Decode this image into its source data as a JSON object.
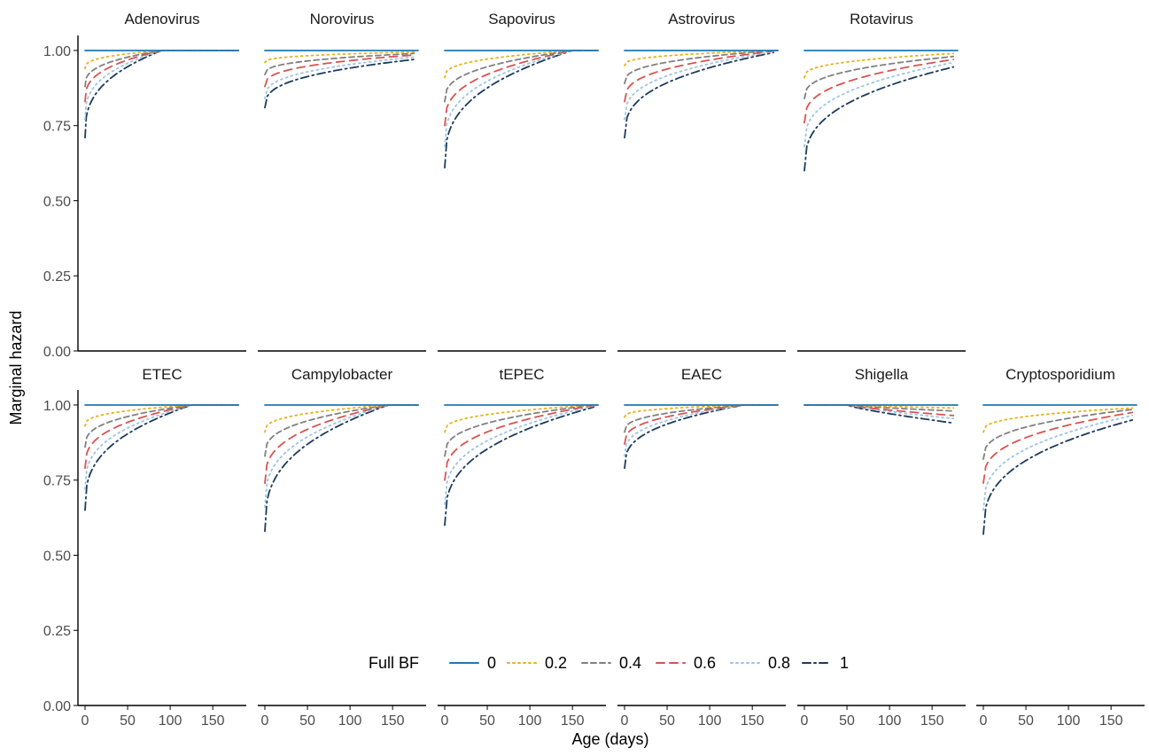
{
  "chart_data": {
    "type": "line",
    "xlabel": "Age (days)",
    "ylabel": "Marginal hazard",
    "xlim": [
      0,
      180
    ],
    "ylim": [
      0,
      1.05
    ],
    "x_ticks": [
      0,
      50,
      100,
      150
    ],
    "y_ticks": [
      0,
      0.25,
      0.5,
      0.75,
      1.0
    ],
    "y_tick_labels": [
      "0.00",
      "0.25",
      "0.50",
      "0.75",
      "1.00"
    ],
    "grid": false,
    "legend": {
      "title": "Full BF",
      "placement": "bottom",
      "entries": [
        {
          "label": "0",
          "color": "#1f77b4",
          "dash": "solid"
        },
        {
          "label": "0.2",
          "color": "#e8b21b",
          "dash": "dotted"
        },
        {
          "label": "0.4",
          "color": "#808080",
          "dash": "dashed"
        },
        {
          "label": "0.6",
          "color": "#d9534f",
          "dash": "longdash"
        },
        {
          "label": "0.8",
          "color": "#9ec3e6",
          "dash": "dotted"
        },
        {
          "label": "1",
          "color": "#1b3a5c",
          "dash": "dotdash"
        }
      ]
    },
    "panels": [
      {
        "title": "Adenovirus",
        "row": 0,
        "col": 0,
        "x_end": 180,
        "series": [
          {
            "name": "0",
            "start": 1.0,
            "end_x": 90,
            "end": 1.0
          },
          {
            "name": "0.2",
            "start": 0.94,
            "end_x": 90,
            "end": 1.0
          },
          {
            "name": "0.4",
            "start": 0.88,
            "end_x": 90,
            "end": 1.0
          },
          {
            "name": "0.6",
            "start": 0.83,
            "end_x": 90,
            "end": 1.0
          },
          {
            "name": "0.8",
            "start": 0.77,
            "end_x": 90,
            "end": 1.0
          },
          {
            "name": "1",
            "start": 0.71,
            "end_x": 90,
            "end": 1.0
          }
        ]
      },
      {
        "title": "Norovirus",
        "row": 0,
        "col": 1,
        "x_end": 180,
        "series": [
          {
            "name": "0",
            "start": 1.0,
            "end_x": 175,
            "end": 1.0
          },
          {
            "name": "0.2",
            "start": 0.96,
            "end_x": 175,
            "end": 0.995
          },
          {
            "name": "0.4",
            "start": 0.92,
            "end_x": 175,
            "end": 0.99
          },
          {
            "name": "0.6",
            "start": 0.88,
            "end_x": 175,
            "end": 0.985
          },
          {
            "name": "0.8",
            "start": 0.84,
            "end_x": 175,
            "end": 0.978
          },
          {
            "name": "1",
            "start": 0.81,
            "end_x": 175,
            "end": 0.97
          }
        ]
      },
      {
        "title": "Sapovirus",
        "row": 0,
        "col": 2,
        "x_end": 180,
        "series": [
          {
            "name": "0",
            "start": 1.0,
            "end_x": 150,
            "end": 1.0
          },
          {
            "name": "0.2",
            "start": 0.91,
            "end_x": 150,
            "end": 1.0
          },
          {
            "name": "0.4",
            "start": 0.83,
            "end_x": 150,
            "end": 1.0
          },
          {
            "name": "0.6",
            "start": 0.75,
            "end_x": 150,
            "end": 1.0
          },
          {
            "name": "0.8",
            "start": 0.68,
            "end_x": 150,
            "end": 1.0
          },
          {
            "name": "1",
            "start": 0.61,
            "end_x": 150,
            "end": 1.0
          }
        ]
      },
      {
        "title": "Astrovirus",
        "row": 0,
        "col": 3,
        "x_end": 180,
        "series": [
          {
            "name": "0",
            "start": 1.0,
            "end_x": 175,
            "end": 1.0
          },
          {
            "name": "0.2",
            "start": 0.95,
            "end_x": 175,
            "end": 1.0
          },
          {
            "name": "0.4",
            "start": 0.89,
            "end_x": 175,
            "end": 1.0
          },
          {
            "name": "0.6",
            "start": 0.83,
            "end_x": 175,
            "end": 0.998
          },
          {
            "name": "0.8",
            "start": 0.77,
            "end_x": 175,
            "end": 0.996
          },
          {
            "name": "1",
            "start": 0.71,
            "end_x": 175,
            "end": 0.993
          }
        ]
      },
      {
        "title": "Rotavirus",
        "row": 0,
        "col": 4,
        "x_end": 180,
        "series": [
          {
            "name": "0",
            "start": 1.0,
            "end_x": 175,
            "end": 1.0
          },
          {
            "name": "0.2",
            "start": 0.91,
            "end_x": 175,
            "end": 0.99
          },
          {
            "name": "0.4",
            "start": 0.84,
            "end_x": 175,
            "end": 0.98
          },
          {
            "name": "0.6",
            "start": 0.76,
            "end_x": 175,
            "end": 0.97
          },
          {
            "name": "0.8",
            "start": 0.68,
            "end_x": 175,
            "end": 0.96
          },
          {
            "name": "1",
            "start": 0.6,
            "end_x": 175,
            "end": 0.945
          }
        ]
      },
      {
        "title": "ETEC",
        "row": 1,
        "col": 0,
        "x_end": 180,
        "series": [
          {
            "name": "0",
            "start": 1.0,
            "end_x": 125,
            "end": 1.0
          },
          {
            "name": "0.2",
            "start": 0.93,
            "end_x": 125,
            "end": 1.0
          },
          {
            "name": "0.4",
            "start": 0.86,
            "end_x": 125,
            "end": 1.0
          },
          {
            "name": "0.6",
            "start": 0.79,
            "end_x": 125,
            "end": 1.0
          },
          {
            "name": "0.8",
            "start": 0.72,
            "end_x": 125,
            "end": 1.0
          },
          {
            "name": "1",
            "start": 0.65,
            "end_x": 125,
            "end": 1.0
          }
        ]
      },
      {
        "title": "Campylobacter",
        "row": 1,
        "col": 1,
        "x_end": 180,
        "series": [
          {
            "name": "0",
            "start": 1.0,
            "end_x": 145,
            "end": 1.0
          },
          {
            "name": "0.2",
            "start": 0.91,
            "end_x": 145,
            "end": 1.0
          },
          {
            "name": "0.4",
            "start": 0.83,
            "end_x": 145,
            "end": 1.0
          },
          {
            "name": "0.6",
            "start": 0.74,
            "end_x": 145,
            "end": 1.0
          },
          {
            "name": "0.8",
            "start": 0.66,
            "end_x": 145,
            "end": 1.0
          },
          {
            "name": "1",
            "start": 0.58,
            "end_x": 145,
            "end": 1.0
          }
        ]
      },
      {
        "title": "tEPEC",
        "row": 1,
        "col": 2,
        "x_end": 180,
        "series": [
          {
            "name": "0",
            "start": 1.0,
            "end_x": 175,
            "end": 1.0
          },
          {
            "name": "0.2",
            "start": 0.91,
            "end_x": 175,
            "end": 1.0
          },
          {
            "name": "0.4",
            "start": 0.83,
            "end_x": 175,
            "end": 1.0
          },
          {
            "name": "0.6",
            "start": 0.75,
            "end_x": 175,
            "end": 0.999
          },
          {
            "name": "0.8",
            "start": 0.67,
            "end_x": 175,
            "end": 0.997
          },
          {
            "name": "1",
            "start": 0.6,
            "end_x": 175,
            "end": 0.993
          }
        ]
      },
      {
        "title": "EAEC",
        "row": 1,
        "col": 3,
        "x_end": 180,
        "series": [
          {
            "name": "0",
            "start": 1.0,
            "end_x": 140,
            "end": 1.0
          },
          {
            "name": "0.2",
            "start": 0.96,
            "end_x": 140,
            "end": 1.0
          },
          {
            "name": "0.4",
            "start": 0.91,
            "end_x": 140,
            "end": 1.0
          },
          {
            "name": "0.6",
            "start": 0.87,
            "end_x": 140,
            "end": 1.0
          },
          {
            "name": "0.8",
            "start": 0.83,
            "end_x": 140,
            "end": 1.0
          },
          {
            "name": "1",
            "start": 0.79,
            "end_x": 140,
            "end": 1.0
          }
        ]
      },
      {
        "title": "Shigella",
        "row": 1,
        "col": 4,
        "x_end": 180,
        "series": [
          {
            "name": "0",
            "start": 1.0,
            "end_x": 175,
            "end": 1.0
          },
          {
            "name": "0.2",
            "start": 1.0,
            "end_x": 175,
            "end": 0.99
          },
          {
            "name": "0.4",
            "start": 1.0,
            "end_x": 175,
            "end": 0.98
          },
          {
            "name": "0.6",
            "start": 1.0,
            "end_x": 175,
            "end": 0.965
          },
          {
            "name": "0.8",
            "start": 1.0,
            "end_x": 175,
            "end": 0.955
          },
          {
            "name": "1",
            "start": 1.0,
            "end_x": 175,
            "end": 0.94
          }
        ]
      },
      {
        "title": "Cryptosporidium",
        "row": 1,
        "col": 5,
        "x_end": 180,
        "series": [
          {
            "name": "0",
            "start": 1.0,
            "end_x": 175,
            "end": 1.0
          },
          {
            "name": "0.2",
            "start": 0.91,
            "end_x": 175,
            "end": 0.99
          },
          {
            "name": "0.4",
            "start": 0.82,
            "end_x": 175,
            "end": 0.985
          },
          {
            "name": "0.6",
            "start": 0.74,
            "end_x": 175,
            "end": 0.975
          },
          {
            "name": "0.8",
            "start": 0.65,
            "end_x": 175,
            "end": 0.965
          },
          {
            "name": "1",
            "start": 0.57,
            "end_x": 175,
            "end": 0.95
          }
        ]
      }
    ]
  }
}
